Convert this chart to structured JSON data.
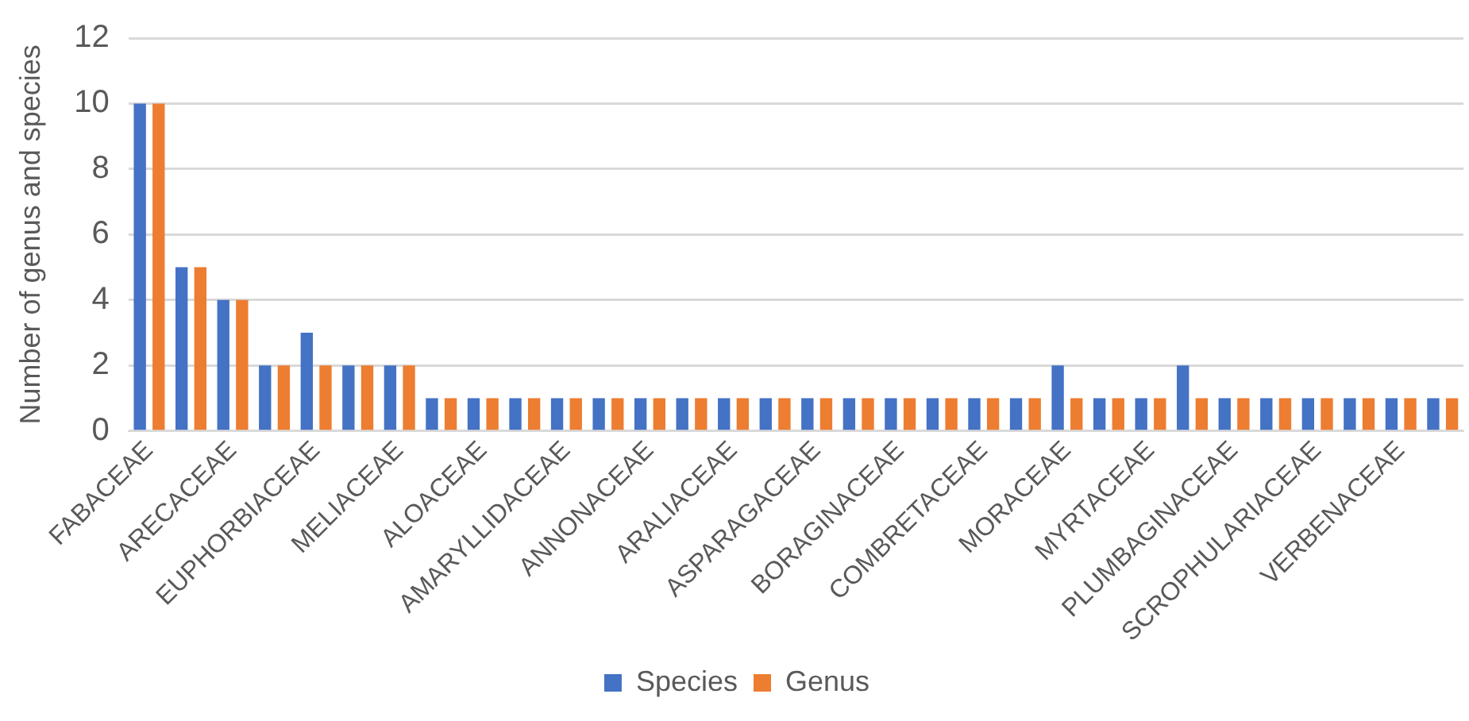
{
  "chart_data": {
    "type": "bar",
    "ylabel": "Number of genus and species",
    "categories": [
      "FABACEAE",
      null,
      "ARECACEAE",
      null,
      "EUPHORBIACEAE",
      null,
      "MELIACEAE",
      null,
      "ALOACEAE",
      null,
      "AMARYLLIDACEAE",
      null,
      "ANNONACEAE",
      null,
      "ARALIACEAE",
      null,
      "ASPARAGACEAE",
      null,
      "BORAGINACEAE",
      null,
      "COMBRETACEAE",
      null,
      "MORACEAE",
      null,
      "MYRTACEAE",
      null,
      "PLUMBAGINACEAE",
      null,
      "SCROPHULARIACEAE",
      null,
      "VERBENACEAE",
      null
    ],
    "series": [
      {
        "name": "Species",
        "color": "#4472c4",
        "values": [
          10,
          5,
          4,
          2,
          3,
          2,
          2,
          1,
          1,
          1,
          1,
          1,
          1,
          1,
          1,
          1,
          1,
          1,
          1,
          1,
          1,
          1,
          2,
          1,
          1,
          2,
          1,
          1,
          1,
          1,
          1,
          1
        ]
      },
      {
        "name": "Genus",
        "color": "#ed7d31",
        "values": [
          10,
          5,
          4,
          2,
          2,
          2,
          2,
          1,
          1,
          1,
          1,
          1,
          1,
          1,
          1,
          1,
          1,
          1,
          1,
          1,
          1,
          1,
          1,
          1,
          1,
          1,
          1,
          1,
          1,
          1,
          1,
          1
        ]
      }
    ],
    "ylim": [
      0,
      12
    ],
    "yticks": [
      0,
      2,
      4,
      6,
      8,
      10,
      12
    ],
    "grid": "y",
    "legend": "bottom"
  }
}
